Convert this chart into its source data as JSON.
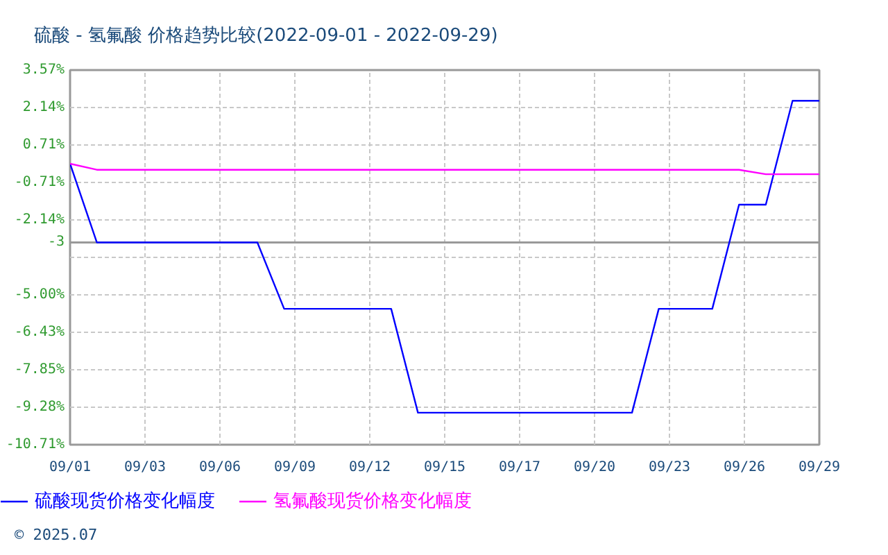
{
  "chart_data": {
    "type": "line",
    "title": "硫酸 - 氢氟酸 价格趋势比较(2022-09-01 - 2022-09-29)",
    "x": [
      "2022-09-01",
      "2022-09-02",
      "2022-09-03",
      "2022-09-04",
      "2022-09-05",
      "2022-09-06",
      "2022-09-07",
      "2022-09-08",
      "2022-09-09",
      "2022-09-10",
      "2022-09-11",
      "2022-09-12",
      "2022-09-13",
      "2022-09-14",
      "2022-09-15",
      "2022-09-16",
      "2022-09-17",
      "2022-09-18",
      "2022-09-19",
      "2022-09-20",
      "2022-09-21",
      "2022-09-22",
      "2022-09-23",
      "2022-09-24",
      "2022-09-25",
      "2022-09-26",
      "2022-09-27",
      "2022-09-28",
      "2022-09-29"
    ],
    "series": [
      {
        "name": "硫酸现货价格变化幅度",
        "color": "#0000ff",
        "values": [
          0,
          -3,
          -3,
          -3,
          -3,
          -3,
          -3,
          -3,
          -5.53,
          -5.53,
          -5.53,
          -5.53,
          -5.53,
          -9.49,
          -9.49,
          -9.49,
          -9.49,
          -9.49,
          -9.49,
          -9.49,
          -9.49,
          -9.49,
          -5.53,
          -5.53,
          -5.53,
          -1.56,
          -1.56,
          2.4,
          2.4
        ]
      },
      {
        "name": "氢氟酸现货价格变化幅度",
        "color": "#ff00ff",
        "values": [
          0,
          -0.23,
          -0.23,
          -0.23,
          -0.23,
          -0.23,
          -0.23,
          -0.23,
          -0.23,
          -0.23,
          -0.23,
          -0.23,
          -0.23,
          -0.23,
          -0.23,
          -0.23,
          -0.23,
          -0.23,
          -0.23,
          -0.23,
          -0.23,
          -0.23,
          -0.23,
          -0.23,
          -0.23,
          -0.23,
          -0.4,
          -0.4,
          -0.4
        ]
      }
    ],
    "xlim": [
      "2022-09-01",
      "2022-09-29"
    ],
    "xticks": [
      {
        "value": "2022-09-01",
        "label": "09/01"
      },
      {
        "value": "2022-09-03T19:12",
        "label": "09/03"
      },
      {
        "value": "2022-09-06T14:24",
        "label": "09/06"
      },
      {
        "value": "2022-09-09T09:36",
        "label": "09/09"
      },
      {
        "value": "2022-09-12T04:48",
        "label": "09/12"
      },
      {
        "value": "2022-09-15",
        "label": "09/15"
      },
      {
        "value": "2022-09-17T19:12",
        "label": "09/17"
      },
      {
        "value": "2022-09-20T14:24",
        "label": "09/20"
      },
      {
        "value": "2022-09-23T09:36",
        "label": "09/23"
      },
      {
        "value": "2022-09-26T04:48",
        "label": "09/26"
      },
      {
        "value": "2022-09-29",
        "label": "09/29"
      }
    ],
    "ylim": [
      -10.71,
      3.57
    ],
    "yticks": [
      {
        "value": 3.57,
        "label": "3.57%"
      },
      {
        "value": 2.14,
        "label": "2.14%"
      },
      {
        "value": 0.71,
        "label": "0.71%"
      },
      {
        "value": -0.71,
        "label": "-0.71%"
      },
      {
        "value": -2.14,
        "label": "-2.14%"
      },
      {
        "value": -3.57,
        "label": null
      },
      {
        "value": -5.0,
        "label": "-5.00%"
      },
      {
        "value": -6.43,
        "label": "-6.43%"
      },
      {
        "value": -7.85,
        "label": "-7.85%"
      },
      {
        "value": -9.28,
        "label": "-9.28%"
      },
      {
        "value": -10.71,
        "label": "-10.71%"
      }
    ],
    "ref_lines": [
      {
        "axis": "y",
        "value": -3,
        "label": "-3",
        "color": "#999999",
        "line_style": "solid"
      }
    ],
    "grid": true,
    "legend": "bottom",
    "annotations": [
      "© 2025.07"
    ]
  }
}
